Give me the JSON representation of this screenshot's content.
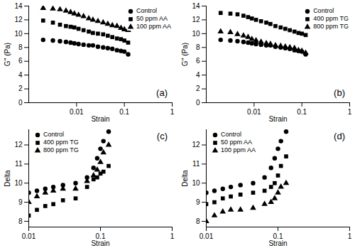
{
  "chart_data": [
    {
      "type": "scatter",
      "x_label": "Strain",
      "y_label": "G'' (Pa)",
      "annotations": [
        "(a)"
      ],
      "log": "x",
      "legend": "top-right",
      "xlim": [
        0.001,
        1
      ],
      "xticks": [
        0.01,
        0.1,
        1
      ],
      "ylim": [
        0,
        14
      ],
      "yticks": [
        0,
        2,
        4,
        6,
        8,
        10,
        12,
        14
      ],
      "x": [
        0.002,
        0.0032,
        0.0045,
        0.006,
        0.0075,
        0.009,
        0.011,
        0.014,
        0.018,
        0.022,
        0.028,
        0.036,
        0.045,
        0.056,
        0.07,
        0.085,
        0.1,
        0.12
      ],
      "series": [
        {
          "name": "Control",
          "color": "#000000",
          "marker": "circle",
          "values": [
            9.1,
            9.0,
            8.9,
            8.8,
            8.7,
            8.6,
            8.5,
            8.4,
            8.3,
            8.3,
            8.1,
            8.0,
            7.9,
            7.8,
            7.6,
            7.5,
            7.4,
            7.0
          ]
        },
        {
          "name": "50 ppm AA",
          "color": "#000000",
          "marker": "square",
          "values": [
            11.9,
            11.6,
            11.3,
            11.1,
            11.0,
            10.9,
            10.7,
            10.5,
            10.3,
            10.1,
            10.0,
            9.9,
            9.7,
            9.5,
            9.3,
            9.2,
            9.0,
            8.7
          ]
        },
        {
          "name": "100 ppm AA",
          "color": "#000000",
          "marker": "triangle",
          "values": [
            13.7,
            13.6,
            13.5,
            13.3,
            13.1,
            12.9,
            12.7,
            12.5,
            12.2,
            12.0,
            11.8,
            11.6,
            11.4,
            11.2,
            11.1,
            10.8,
            10.6,
            10.5
          ]
        }
      ]
    },
    {
      "type": "scatter",
      "x_label": "Strain",
      "y_label": "G'' (Pa)",
      "annotations": [
        "(b)"
      ],
      "log": "x",
      "legend": "top-right",
      "xlim": [
        0.001,
        1
      ],
      "xticks": [
        0.01,
        0.1,
        1
      ],
      "ylim": [
        0,
        14
      ],
      "yticks": [
        0,
        2,
        4,
        6,
        8,
        10,
        12,
        14
      ],
      "x": [
        0.002,
        0.0032,
        0.0045,
        0.006,
        0.0075,
        0.009,
        0.011,
        0.014,
        0.018,
        0.022,
        0.028,
        0.036,
        0.045,
        0.056,
        0.07,
        0.085,
        0.1,
        0.12
      ],
      "series": [
        {
          "name": "Control",
          "color": "#000000",
          "marker": "circle",
          "values": [
            9.1,
            9.0,
            8.9,
            8.8,
            8.7,
            8.6,
            8.5,
            8.4,
            8.3,
            8.3,
            8.1,
            8.0,
            7.9,
            7.8,
            7.6,
            7.5,
            7.4,
            7.0
          ]
        },
        {
          "name": "400 ppm TG",
          "color": "#000000",
          "marker": "square",
          "values": [
            13.0,
            12.9,
            12.8,
            12.6,
            12.4,
            12.2,
            12.0,
            11.8,
            11.6,
            11.4,
            11.1,
            10.9,
            10.7,
            10.5,
            10.3,
            10.1,
            10.0,
            9.8
          ]
        },
        {
          "name": "800 ppm TG",
          "color": "#000000",
          "marker": "triangle",
          "values": [
            10.3,
            10.2,
            9.9,
            9.7,
            9.5,
            9.2,
            9.0,
            8.8,
            8.6,
            8.5,
            8.3,
            8.2,
            8.1,
            8.0,
            7.9,
            7.6,
            7.5,
            7.2
          ]
        }
      ]
    },
    {
      "type": "scatter",
      "x_label": "Strain",
      "y_label": "Delta",
      "annotations": [
        "(c)"
      ],
      "log": "x",
      "legend": "top-left",
      "xlim": [
        0.01,
        1
      ],
      "xticks": [
        0.01,
        0.1,
        1
      ],
      "ylim": [
        7.7,
        12.8
      ],
      "yticks": [
        8,
        9,
        10,
        11,
        12
      ],
      "x": [
        0.01,
        0.013,
        0.017,
        0.022,
        0.03,
        0.045,
        0.065,
        0.08,
        0.09,
        0.1,
        0.11,
        0.13
      ],
      "series": [
        {
          "name": "Control",
          "color": "#000000",
          "marker": "circle",
          "values": [
            9.5,
            9.6,
            9.7,
            9.8,
            9.9,
            10.0,
            10.3,
            10.8,
            11.3,
            11.8,
            12.2,
            12.7
          ]
        },
        {
          "name": "400 ppm TG",
          "color": "#000000",
          "marker": "square",
          "values": [
            8.3,
            8.6,
            8.8,
            8.9,
            9.1,
            9.2,
            9.8,
            10.2,
            10.3,
            10.5,
            10.6,
            10.9
          ]
        },
        {
          "name": "800 ppm TG",
          "color": "#000000",
          "marker": "triangle",
          "values": [
            9.0,
            9.3,
            9.5,
            9.6,
            9.7,
            9.7,
            10.1,
            10.4,
            10.7,
            11.1,
            11.6,
            12.0
          ]
        }
      ]
    },
    {
      "type": "scatter",
      "x_label": "Strain",
      "y_label": "Delta",
      "annotations": [
        "(d)"
      ],
      "log": "x",
      "legend": "top-left",
      "xlim": [
        0.01,
        1
      ],
      "xticks": [
        0.01,
        0.1,
        1
      ],
      "ylim": [
        7.7,
        12.8
      ],
      "yticks": [
        8,
        9,
        10,
        11,
        12
      ],
      "x": [
        0.01,
        0.013,
        0.017,
        0.022,
        0.03,
        0.045,
        0.065,
        0.08,
        0.09,
        0.1,
        0.11,
        0.13
      ],
      "series": [
        {
          "name": "Control",
          "color": "#000000",
          "marker": "circle",
          "values": [
            9.5,
            9.6,
            9.7,
            9.8,
            9.9,
            10.0,
            10.3,
            10.8,
            11.3,
            11.8,
            12.2,
            12.7
          ]
        },
        {
          "name": "50 ppm AA",
          "color": "#000000",
          "marker": "square",
          "values": [
            8.9,
            9.0,
            9.2,
            9.3,
            9.4,
            9.5,
            9.6,
            9.8,
            10.0,
            10.4,
            10.9,
            11.4
          ]
        },
        {
          "name": "100 ppm AA",
          "color": "#000000",
          "marker": "triangle",
          "values": [
            8.0,
            8.3,
            8.5,
            8.6,
            8.6,
            8.7,
            8.9,
            9.0,
            9.2,
            9.5,
            9.8,
            10.0
          ]
        }
      ]
    }
  ]
}
